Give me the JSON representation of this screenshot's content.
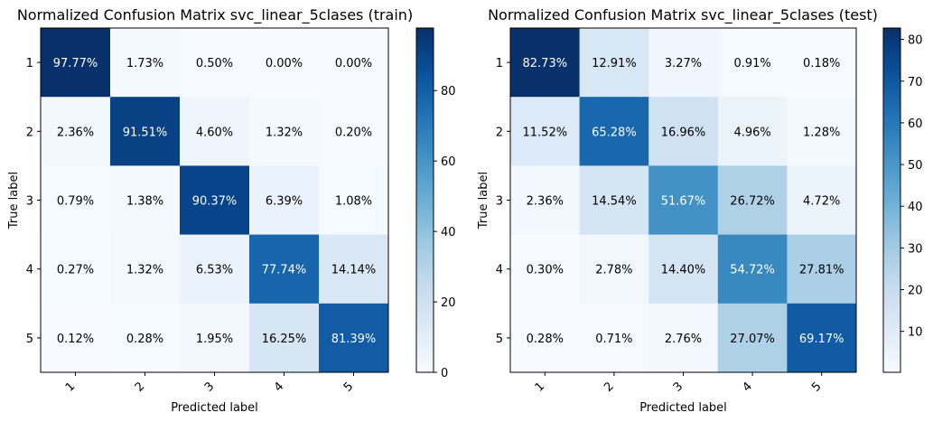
{
  "chart_data": [
    {
      "type": "heatmap",
      "title": "Normalized Confusion Matrix svc_linear_5clases (train)",
      "xlabel": "Predicted label",
      "ylabel": "True label",
      "x_categories": [
        "1",
        "2",
        "3",
        "4",
        "5"
      ],
      "y_categories": [
        "1",
        "2",
        "3",
        "4",
        "5"
      ],
      "values": [
        [
          97.77,
          1.73,
          0.5,
          0.0,
          0.0
        ],
        [
          2.36,
          91.51,
          4.6,
          1.32,
          0.2
        ],
        [
          0.79,
          1.38,
          90.37,
          6.39,
          1.08
        ],
        [
          0.27,
          1.32,
          6.53,
          77.74,
          14.14
        ],
        [
          0.12,
          0.28,
          1.95,
          16.25,
          81.39
        ]
      ],
      "value_format": "%",
      "colormap": "Blues",
      "colorbar": {
        "min": 0,
        "max": 97.77,
        "ticks": [
          0,
          20,
          40,
          60,
          80
        ]
      }
    },
    {
      "type": "heatmap",
      "title": "Normalized Confusion Matrix svc_linear_5clases (test)",
      "xlabel": "Predicted label",
      "ylabel": "True label",
      "x_categories": [
        "1",
        "2",
        "3",
        "4",
        "5"
      ],
      "y_categories": [
        "1",
        "2",
        "3",
        "4",
        "5"
      ],
      "values": [
        [
          82.73,
          12.91,
          3.27,
          0.91,
          0.18
        ],
        [
          11.52,
          65.28,
          16.96,
          4.96,
          1.28
        ],
        [
          2.36,
          14.54,
          51.67,
          26.72,
          4.72
        ],
        [
          0.3,
          2.78,
          14.4,
          54.72,
          27.81
        ],
        [
          0.28,
          0.71,
          2.76,
          27.07,
          69.17
        ]
      ],
      "value_format": "%",
      "colormap": "Blues",
      "colorbar": {
        "min": 0.18,
        "max": 82.73,
        "ticks": [
          10,
          20,
          30,
          40,
          50,
          60,
          70,
          80
        ]
      }
    }
  ]
}
